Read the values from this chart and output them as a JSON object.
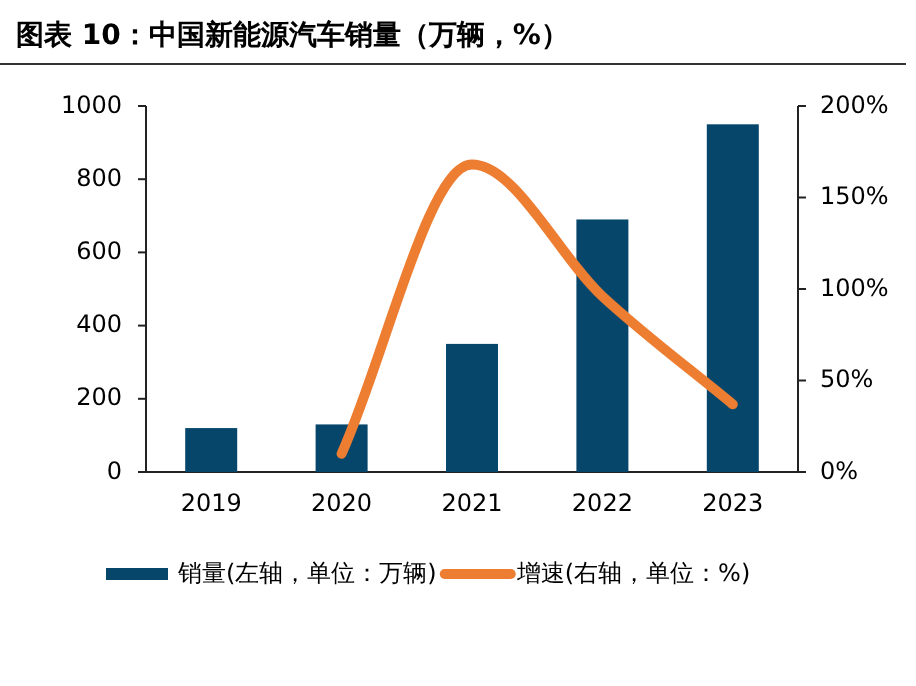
{
  "chart_data": {
    "type": "bar",
    "title": "图表 10：中国新能源汽车销量（万辆，%）",
    "categories": [
      "2019",
      "2020",
      "2021",
      "2022",
      "2023"
    ],
    "series": [
      {
        "name": "销量(左轴，单位：万辆)",
        "color": "#06466b",
        "values": [
          120,
          130,
          350,
          690,
          950
        ]
      },
      {
        "name": "增速(右轴，单位：%)",
        "type": "line",
        "axis": "y2",
        "color": "#ed7d31",
        "values": [
          null,
          10,
          168,
          96,
          37
        ]
      }
    ],
    "ylim": [
      0,
      1000
    ],
    "yticks": [
      0,
      200,
      400,
      600,
      800,
      1000
    ],
    "y2lim": [
      0,
      200
    ],
    "y2ticks": [
      {
        "value": 0,
        "label": "0%"
      },
      {
        "value": 50,
        "label": "50%"
      },
      {
        "value": 100,
        "label": "100%"
      },
      {
        "value": 150,
        "label": "150%"
      },
      {
        "value": 200,
        "label": "200%"
      }
    ],
    "grid": false,
    "legend": "bottom"
  }
}
